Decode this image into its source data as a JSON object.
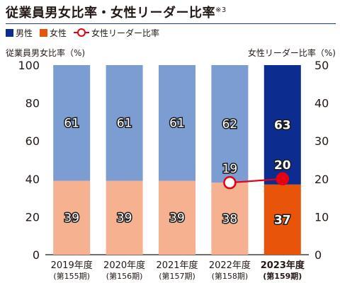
{
  "title": {
    "main": "従業員男女比率・女性リーダー比率",
    "note": "※3"
  },
  "legend": {
    "male": "男性",
    "female": "女性",
    "leader": "女性リーダー比率"
  },
  "colors": {
    "male": "#7b9dd2",
    "male_highlight": "#0c2c8f",
    "female": "#f6b190",
    "female_highlight": "#e8540a",
    "leader_line": "#e60012",
    "title_rule": "#1d3b8f",
    "axis": "#231815"
  },
  "chart_data": {
    "type": "bar",
    "stacked": true,
    "categories": [
      {
        "year": "2019年度",
        "period": "(第155期)"
      },
      {
        "year": "2020年度",
        "period": "(第156期)"
      },
      {
        "year": "2021年度",
        "period": "(第157期)"
      },
      {
        "year": "2022年度",
        "period": "(第158期)"
      },
      {
        "year": "2023年度",
        "period": "(第159期)"
      }
    ],
    "highlight_index": 4,
    "series": [
      {
        "name": "女性",
        "values": [
          39,
          39,
          39,
          38,
          37
        ]
      },
      {
        "name": "男性",
        "values": [
          61,
          61,
          61,
          62,
          63
        ]
      }
    ],
    "leader_series": {
      "name": "女性リーダー比率",
      "values": [
        null,
        null,
        null,
        19,
        20
      ]
    },
    "ylabel_left": "従業員男女比率（%)",
    "ylabel_right": "女性リーダー比率（%)",
    "y_left": {
      "lim": [
        0,
        100
      ],
      "ticks": [
        0,
        20,
        40,
        60,
        80,
        100
      ]
    },
    "y_right": {
      "lim": [
        0,
        50
      ],
      "ticks": [
        0,
        10,
        20,
        30,
        40,
        50
      ]
    }
  }
}
